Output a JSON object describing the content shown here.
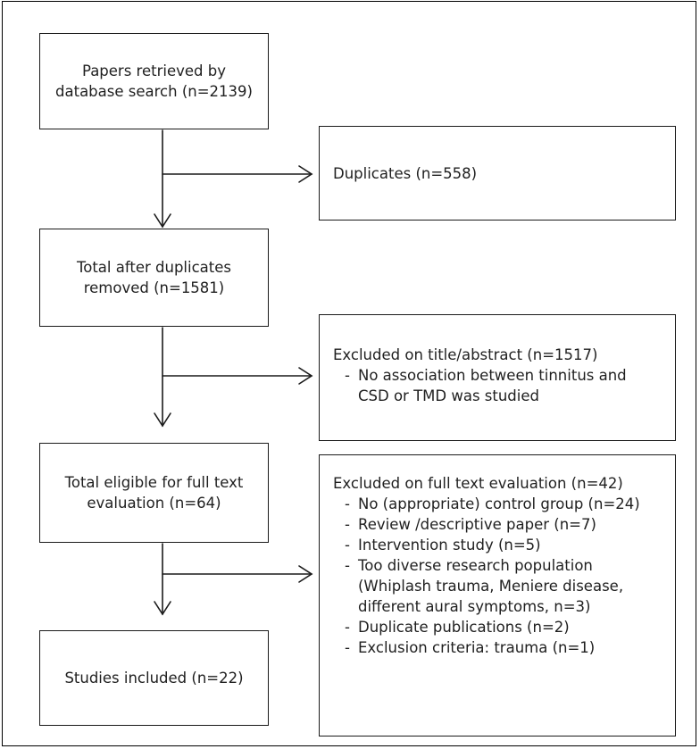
{
  "boxes": {
    "retrieved": {
      "lines": [
        "Papers retrieved by",
        "database search (n=2139)"
      ]
    },
    "duplicates": {
      "text": "Duplicates (n=558)"
    },
    "after_dup": {
      "lines": [
        "Total after duplicates",
        "removed (n=1581)"
      ]
    },
    "excluded_title": {
      "heading": "Excluded on title/abstract (n=1517)",
      "items": [
        {
          "dash": "-",
          "lines": [
            "No association between tinnitus and",
            "CSD or TMD  was studied"
          ]
        }
      ]
    },
    "eligible": {
      "lines": [
        "Total eligible for full text",
        "evaluation (n=64)"
      ]
    },
    "excluded_full": {
      "heading": "Excluded on full text evaluation (n=42)",
      "items": [
        {
          "dash": "-",
          "lines": [
            "No (appropriate) control group (n=24)"
          ]
        },
        {
          "dash": "-",
          "lines": [
            "Review /descriptive paper (n=7)"
          ]
        },
        {
          "dash": "-",
          "lines": [
            "Intervention study (n=5)"
          ]
        },
        {
          "dash": "-",
          "lines": [
            "Too diverse research population",
            "(Whiplash trauma, Meniere disease,",
            "different aural symptoms, n=3)"
          ]
        },
        {
          "dash": "-",
          "lines": [
            "Duplicate publications (n=2)"
          ]
        },
        {
          "dash": "-",
          "lines": [
            "Exclusion criteria: trauma (n=1)"
          ]
        }
      ]
    },
    "included": {
      "text": "Studies included (n=22)"
    }
  }
}
